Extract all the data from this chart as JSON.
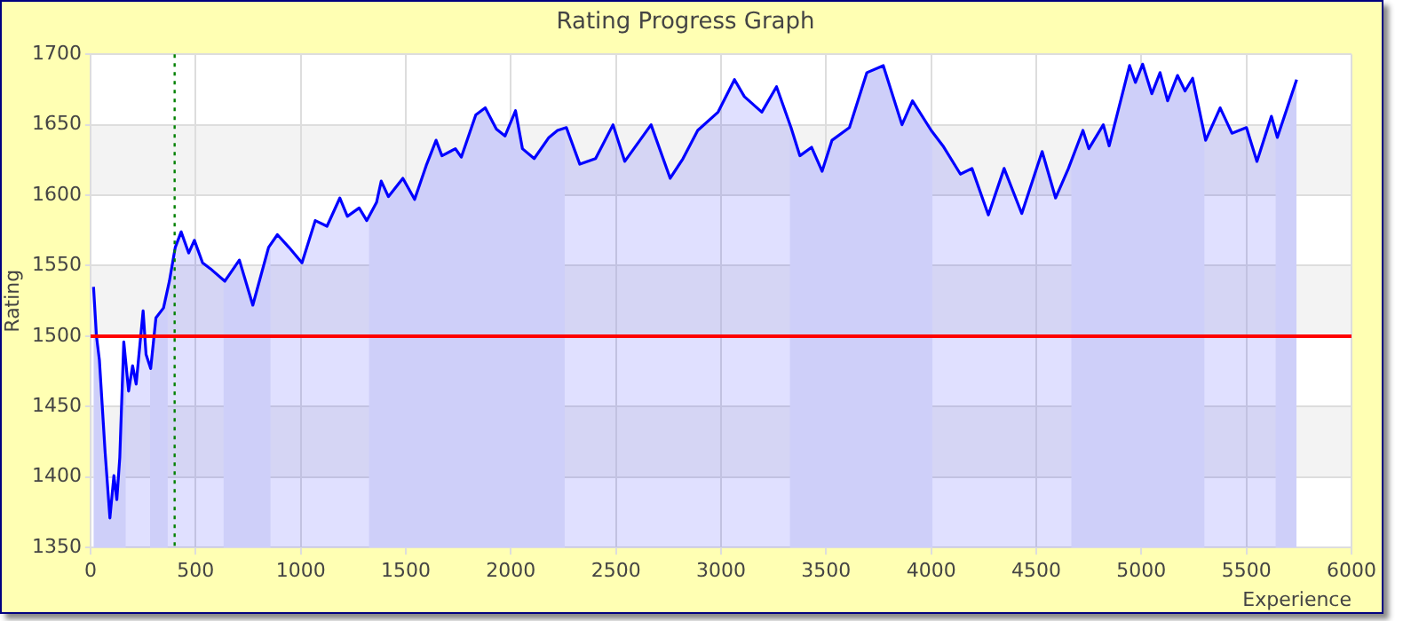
{
  "chart_data": {
    "type": "area",
    "title": "Rating Progress Graph",
    "xlabel": "Experience",
    "ylabel": "Rating",
    "x": [
      14,
      28,
      42,
      69,
      92,
      111,
      125,
      139,
      158,
      181,
      200,
      217,
      250,
      264,
      286,
      311,
      347,
      375,
      403,
      431,
      467,
      494,
      533,
      569,
      639,
      708,
      772,
      847,
      889,
      944,
      1006,
      1069,
      1125,
      1186,
      1222,
      1278,
      1314,
      1361,
      1383,
      1417,
      1486,
      1542,
      1597,
      1644,
      1672,
      1736,
      1764,
      1833,
      1878,
      1931,
      1972,
      2022,
      2055,
      2111,
      2181,
      2222,
      2264,
      2328,
      2403,
      2486,
      2542,
      2667,
      2758,
      2819,
      2889,
      2986,
      3064,
      3111,
      3194,
      3264,
      3333,
      3375,
      3431,
      3481,
      3528,
      3611,
      3694,
      3772,
      3861,
      3911,
      4000,
      4056,
      4139,
      4194,
      4272,
      4347,
      4431,
      4528,
      4592,
      4653,
      4722,
      4750,
      4819,
      4847,
      4944,
      4972,
      5006,
      5050,
      5089,
      5125,
      5172,
      5208,
      5244,
      5306,
      5375,
      5431,
      5500,
      5550,
      5619,
      5647,
      5739
    ],
    "series": [
      {
        "color": "#0000ff",
        "values": [
          1535,
          1500,
          1483,
          1418,
          1371,
          1401,
          1384,
          1414,
          1496,
          1461,
          1479,
          1466,
          1518,
          1487,
          1477,
          1513,
          1520,
          1539,
          1563,
          1574,
          1559,
          1568,
          1552,
          1548,
          1539,
          1554,
          1522,
          1563,
          1572,
          1563,
          1552,
          1582,
          1578,
          1598,
          1585,
          1591,
          1582,
          1595,
          1610,
          1599,
          1612,
          1597,
          1621,
          1639,
          1628,
          1633,
          1627,
          1657,
          1662,
          1647,
          1642,
          1660,
          1633,
          1626,
          1641,
          1646,
          1648,
          1622,
          1626,
          1650,
          1624,
          1650,
          1612,
          1626,
          1646,
          1659,
          1682,
          1670,
          1659,
          1677,
          1648,
          1628,
          1634,
          1617,
          1639,
          1648,
          1687,
          1692,
          1650,
          1667,
          1646,
          1635,
          1615,
          1619,
          1586,
          1619,
          1587,
          1631,
          1598,
          1619,
          1646,
          1633,
          1650,
          1635,
          1692,
          1680,
          1693,
          1672,
          1687,
          1667,
          1685,
          1674,
          1683,
          1639,
          1662,
          1644,
          1648,
          1624,
          1656,
          1641,
          1682
        ]
      }
    ],
    "xlim": [
      0,
      6000
    ],
    "xticks": [
      0,
      500,
      1000,
      1500,
      2000,
      2500,
      3000,
      3500,
      4000,
      4500,
      5000,
      5500,
      6000
    ],
    "ylim": [
      1350,
      1700
    ],
    "yticks": [
      1350,
      1400,
      1450,
      1500,
      1550,
      1600,
      1650,
      1700
    ],
    "grid": true,
    "marker": "none",
    "bands": [
      {
        "axis": "x",
        "from": 0,
        "to": 167,
        "color": "#ebecf9"
      },
      {
        "axis": "x",
        "from": 283,
        "to": 367,
        "color": "#ebecf9"
      },
      {
        "axis": "x",
        "from": 633,
        "to": 856,
        "color": "#ebecf9"
      },
      {
        "axis": "x",
        "from": 1325,
        "to": 2256,
        "color": "#ebecf9"
      },
      {
        "axis": "x",
        "from": 3328,
        "to": 4006,
        "color": "#ebecf9"
      },
      {
        "axis": "x",
        "from": 4667,
        "to": 5300,
        "color": "#ebecf9"
      },
      {
        "axis": "x",
        "from": 5639,
        "to": 5739,
        "color": "#ebecf9"
      }
    ],
    "ref_lines": [
      {
        "axis": "y",
        "value": 1500,
        "color": "#ff0000"
      },
      {
        "axis": "x",
        "value": 400,
        "color": "#008000",
        "line_style": "dotted"
      }
    ]
  }
}
